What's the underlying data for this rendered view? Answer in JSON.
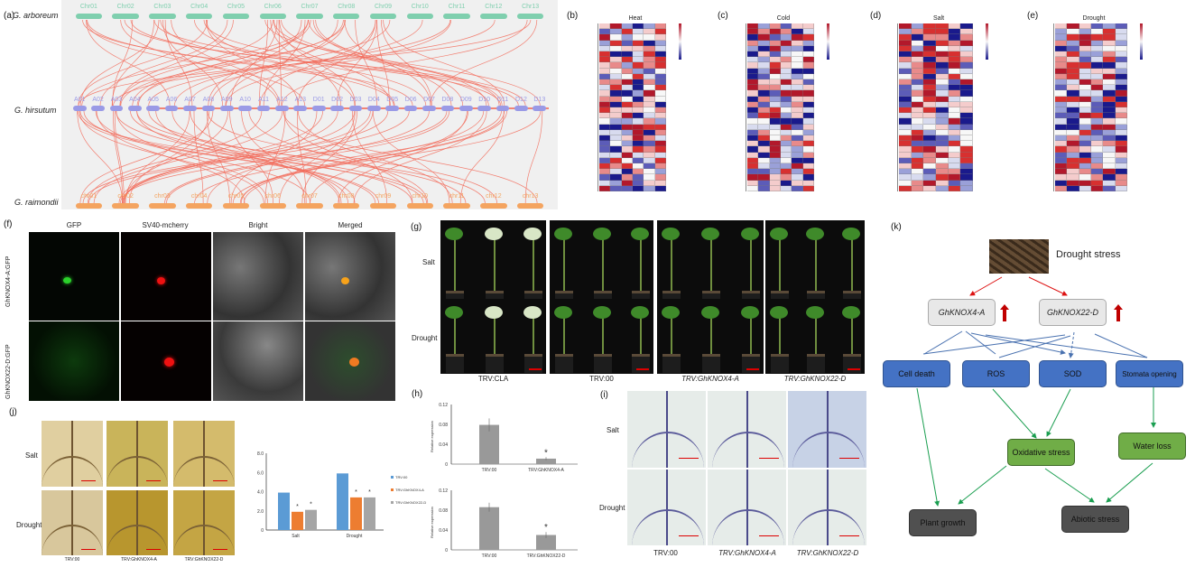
{
  "panels": {
    "a": {
      "label": "(a)",
      "species": [
        "G. arboreum",
        "G. hirsutum",
        "G. raimondii"
      ],
      "arboreum_chr": [
        "Chr01",
        "Chr02",
        "Chr03",
        "Chr04",
        "Chr05",
        "Chr06",
        "Chr07",
        "Chr08",
        "Chr09",
        "Chr10",
        "Chr11",
        "Chr12",
        "Chr13"
      ],
      "hirsutum_chr": [
        "A01",
        "A02",
        "A03",
        "A04",
        "A05",
        "A06",
        "A07",
        "A08",
        "A09",
        "A10",
        "A11",
        "A12",
        "A13",
        "D01",
        "D02",
        "D03",
        "D04",
        "D05",
        "D06",
        "D07",
        "D08",
        "D09",
        "D10",
        "D11",
        "D12",
        "D13"
      ],
      "raimondii_chr": [
        "chr01",
        "chr02",
        "chr03",
        "chr04",
        "chr05",
        "chr06",
        "chr07",
        "chr08",
        "chr09",
        "chr10",
        "chr11",
        "chr12",
        "chr13"
      ],
      "colors": {
        "arboreum": "#7fcfae",
        "hirsutum": "#9a9ae6",
        "raimondii": "#f4a460",
        "link": "#f26b5b",
        "background": "#f0f0f0"
      }
    },
    "b": {
      "label": "(b)",
      "title": "Heat"
    },
    "c": {
      "label": "(c)",
      "title": "Cold"
    },
    "d": {
      "label": "(d)",
      "title": "Salt"
    },
    "e": {
      "label": "(e)",
      "title": "Drought"
    },
    "heatmap_scale": [
      "2",
      "1",
      "0",
      "-1",
      "-2"
    ],
    "f": {
      "label": "(f)",
      "columns": [
        "GFP",
        "SV40-mcherry",
        "Bright",
        "Merged"
      ],
      "rows": [
        "GhKNOX4-A:GFP",
        "GhKNOX22-D:GFP"
      ]
    },
    "g": {
      "label": "(g)",
      "rows": [
        "Salt",
        "Drought"
      ],
      "columns": [
        "TRV:CLA",
        "TRV:00",
        "TRV:GhKNOX4-A",
        "TRV:GhKNOX22-D"
      ]
    },
    "h": {
      "label": "(h)",
      "ylabel": "Relative expression",
      "charts": [
        {
          "categories": [
            "TRV:00",
            "TRV:GhKNOX4-A"
          ],
          "values": [
            0.079,
            0.011
          ],
          "errors": [
            0.013,
            0.003
          ],
          "sig": [
            "",
            "*"
          ]
        },
        {
          "categories": [
            "TRV:00",
            "TRV:GhKNOX22-D"
          ],
          "values": [
            0.086,
            0.03
          ],
          "errors": [
            0.009,
            0.006
          ],
          "sig": [
            "",
            "*"
          ]
        }
      ],
      "yticks": [
        "0",
        "0.04",
        "0.08",
        "0.12"
      ]
    },
    "i": {
      "label": "(i)",
      "rows": [
        "Salt",
        "Drought"
      ],
      "columns": [
        "TRV:00",
        "TRV:GhKNOX4-A",
        "TRV:GhKNOX22-D"
      ]
    },
    "j": {
      "label": "(j)",
      "rows": [
        "Salt",
        "Drought"
      ],
      "columns": [
        "TRV:00",
        "TRV:GhKNOX4-A",
        "TRV:GhKNOX22-D"
      ]
    },
    "k": {
      "label": "(k)",
      "stress": "Drought stress",
      "genes": [
        "GhKNOX4-A",
        "GhKNOX22-D"
      ],
      "effects": [
        "Cell death",
        "ROS",
        "SOD",
        "Stomata opening"
      ],
      "mid": [
        "Oxidative stress",
        "Water loss"
      ],
      "outcomes": [
        "Plant growth",
        "Abiotic stress"
      ]
    }
  },
  "chart_data": [
    {
      "type": "bar",
      "title": "",
      "categories": [
        "Salt",
        "Drought"
      ],
      "series": [
        {
          "name": "TRV:00",
          "values": [
            3.9,
            5.9
          ],
          "color": "#5b9bd5"
        },
        {
          "name": "TRV:GhKNOX4-A",
          "values": [
            1.9,
            3.4
          ],
          "color": "#ed7d31"
        },
        {
          "name": "TRV:GhKNOX22-D",
          "values": [
            2.1,
            3.4
          ],
          "color": "#a5a5a5"
        }
      ],
      "sig": [
        [
          "",
          "*",
          "*"
        ],
        [
          "",
          "*",
          "*"
        ]
      ],
      "yticks": [
        "0",
        "2.0",
        "4.0",
        "6.0",
        "8.0"
      ],
      "ylim": [
        0,
        8
      ],
      "xlabel": "",
      "ylabel": "",
      "legend": "right"
    }
  ]
}
